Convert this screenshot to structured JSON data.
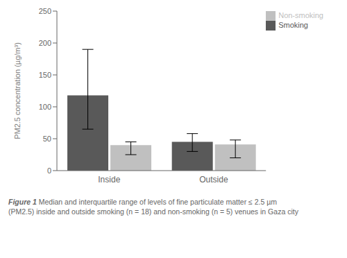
{
  "chart_data": {
    "type": "bar",
    "categories": [
      "Inside",
      "Outside"
    ],
    "series": [
      {
        "name": "Smoking",
        "color": "#595959",
        "values": [
          118,
          45
        ],
        "error_low": [
          53,
          15
        ],
        "error_high": [
          72,
          13
        ]
      },
      {
        "name": "Non-smoking",
        "color": "#c0c0c0",
        "values": [
          40,
          41
        ],
        "error_low": [
          15,
          21
        ],
        "error_high": [
          5,
          7
        ]
      }
    ],
    "ylabel": "PM2.5 concentration (µg/m³)",
    "ylim": [
      0,
      250
    ],
    "yticks": [
      0,
      50,
      100,
      150,
      200,
      250
    ],
    "grid": false,
    "legend": "upper right",
    "annotations": [
      "Figure 1",
      "Median and interquartile range of levels of fine particulate matter ≤ 2.5 µm",
      "(PM2.5) inside and outside smoking (n = 18) and non-smoking (n = 5) venues in Gaza city"
    ]
  }
}
